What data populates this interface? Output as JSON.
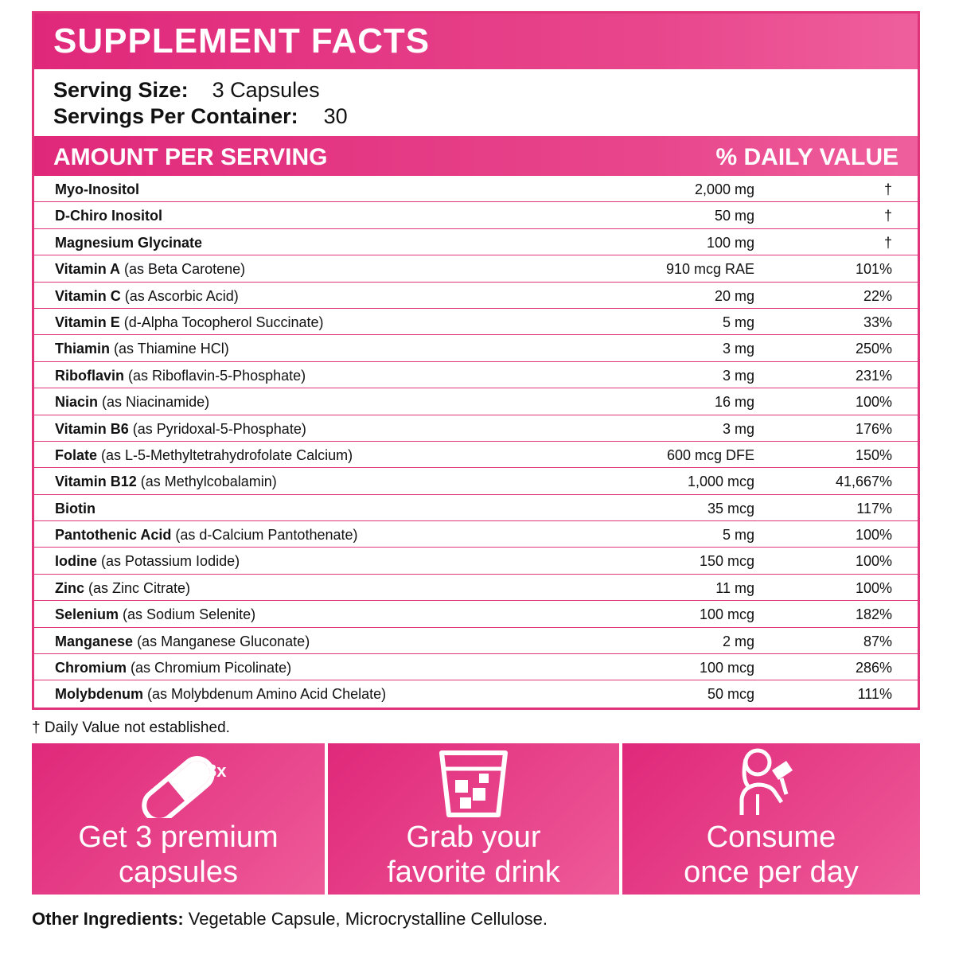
{
  "title": "SUPPLEMENT FACTS",
  "serving": {
    "size_label": "Serving Size:",
    "size_value": "3 Capsules",
    "per_container_label": "Servings Per Container:",
    "per_container_value": "30"
  },
  "header": {
    "amount_label": "AMOUNT PER SERVING",
    "dv_label": "% DAILY VALUE"
  },
  "nutrients": [
    {
      "name": "Myo-Inositol",
      "source": "",
      "amount": "2,000 mg",
      "dv": "†"
    },
    {
      "name": "D-Chiro Inositol",
      "source": "",
      "amount": "50 mg",
      "dv": "†"
    },
    {
      "name": "Magnesium Glycinate",
      "source": "",
      "amount": "100 mg",
      "dv": "†"
    },
    {
      "name": "Vitamin A",
      "source": "(as Beta Carotene)",
      "amount": "910 mcg RAE",
      "dv": "101%"
    },
    {
      "name": "Vitamin C",
      "source": "(as Ascorbic Acid)",
      "amount": "20 mg",
      "dv": "22%"
    },
    {
      "name": "Vitamin E",
      "source": "(d-Alpha Tocopherol Succinate)",
      "amount": "5 mg",
      "dv": "33%"
    },
    {
      "name": "Thiamin",
      "source": "(as Thiamine HCl)",
      "amount": "3 mg",
      "dv": "250%"
    },
    {
      "name": "Riboflavin",
      "source": "(as Riboflavin-5-Phosphate)",
      "amount": "3 mg",
      "dv": "231%"
    },
    {
      "name": "Niacin",
      "source": "(as Niacinamide)",
      "amount": "16 mg",
      "dv": "100%"
    },
    {
      "name": "Vitamin B6",
      "source": "(as Pyridoxal-5-Phosphate)",
      "amount": "3 mg",
      "dv": "176%"
    },
    {
      "name": "Folate",
      "source": "(as L-5-Methyltetrahydrofolate Calcium)",
      "amount": "600 mcg DFE",
      "dv": "150%"
    },
    {
      "name": "Vitamin B12",
      "source": "(as Methylcobalamin)",
      "amount": "1,000 mcg",
      "dv": "41,667%"
    },
    {
      "name": "Biotin",
      "source": "",
      "amount": "35 mcg",
      "dv": "117%"
    },
    {
      "name": "Pantothenic Acid",
      "source": "(as d-Calcium Pantothenate)",
      "amount": "5 mg",
      "dv": "100%"
    },
    {
      "name": "Iodine",
      "source": "(as Potassium Iodide)",
      "amount": "150 mcg",
      "dv": "100%"
    },
    {
      "name": "Zinc",
      "source": "(as Zinc Citrate)",
      "amount": "11 mg",
      "dv": "100%"
    },
    {
      "name": "Selenium",
      "source": "(as Sodium Selenite)",
      "amount": "100 mcg",
      "dv": "182%"
    },
    {
      "name": "Manganese",
      "source": "(as Manganese Gluconate)",
      "amount": "2 mg",
      "dv": "87%"
    },
    {
      "name": "Chromium",
      "source": "(as Chromium Picolinate)",
      "amount": "100 mcg",
      "dv": "286%"
    },
    {
      "name": "Molybdenum",
      "source": "(as Molybdenum Amino Acid Chelate)",
      "amount": "50 mcg",
      "dv": "111%"
    }
  ],
  "footnote": "† Daily Value not established.",
  "steps": [
    {
      "icon": "capsule-icon",
      "badge": "3x",
      "line1": "Get 3 premium",
      "line2": "capsules"
    },
    {
      "icon": "drink-glass-icon",
      "badge": "",
      "line1": "Grab your",
      "line2": "favorite drink"
    },
    {
      "icon": "woman-drinking-icon",
      "badge": "",
      "line1": "Consume",
      "line2": "once per day"
    }
  ],
  "other_ingredients": {
    "label": "Other Ingredients:",
    "value": " Vegetable Capsule, Microcrystalline Cellulose."
  },
  "colors": {
    "brand_pink": "#e0287a",
    "brand_pink_light": "#ef5f9d",
    "text": "#111111"
  }
}
